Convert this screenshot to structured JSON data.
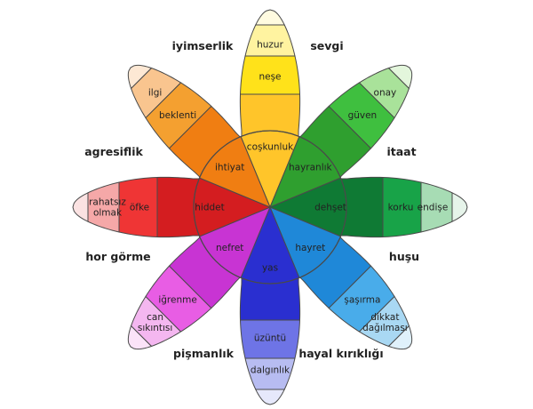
{
  "outer_labels": {
    "top_left": "iyimserlik",
    "top_right": "sevgi",
    "right_top": "itaat",
    "right_bottom": "huşu",
    "bottom_right": "hayal kırıklığı",
    "bottom_left": "pişmanlık",
    "left_bottom": "hor görme",
    "left_top": "agresiflik"
  },
  "petals": [
    {
      "key": "top",
      "colors": [
        "#fffbe0",
        "#fff3a0",
        "#ffe21a",
        "#ffc52a"
      ],
      "labels": [
        "",
        "huzur",
        "neşe",
        "coşkunluk"
      ]
    },
    {
      "key": "topright",
      "colors": [
        "#e3f6dc",
        "#a9e29a",
        "#3fbf3f",
        "#2f9f2f"
      ],
      "labels": [
        "",
        "onay",
        "güven",
        "hayranlık"
      ]
    },
    {
      "key": "right",
      "colors": [
        "#e6f4ea",
        "#a7dcb4",
        "#18a348",
        "#0f7a34"
      ],
      "labels": [
        "",
        "endişe",
        "korku",
        "dehşet"
      ]
    },
    {
      "key": "bottomright",
      "colors": [
        "#e0f1fb",
        "#a9d8f3",
        "#49acea",
        "#1f88d8"
      ],
      "labels": [
        "",
        "dikkat dağılması",
        "şaşırma",
        "hayret"
      ]
    },
    {
      "key": "bottom",
      "colors": [
        "#e6e8fb",
        "#b7bcf1",
        "#6e74e6",
        "#2a2fd0"
      ],
      "labels": [
        "",
        "dalgınlık",
        "üzüntü",
        "yas"
      ]
    },
    {
      "key": "bottomleft",
      "colors": [
        "#fbe3f8",
        "#f4b7f0",
        "#e85de4",
        "#c834d3"
      ],
      "labels": [
        "",
        "can sıkıntısı",
        "iğrenme",
        "nefret"
      ]
    },
    {
      "key": "left",
      "colors": [
        "#fbe2e2",
        "#f5a8a8",
        "#ef3535",
        "#d41d20"
      ],
      "labels": [
        "",
        "rahatsız olmak",
        "öfke",
        "hiddet"
      ]
    },
    {
      "key": "topleft",
      "colors": [
        "#fde8d4",
        "#f9c58f",
        "#f4a030",
        "#f07e12"
      ],
      "labels": [
        "",
        "ilgi",
        "beklenti",
        "ihtiyat"
      ]
    }
  ]
}
